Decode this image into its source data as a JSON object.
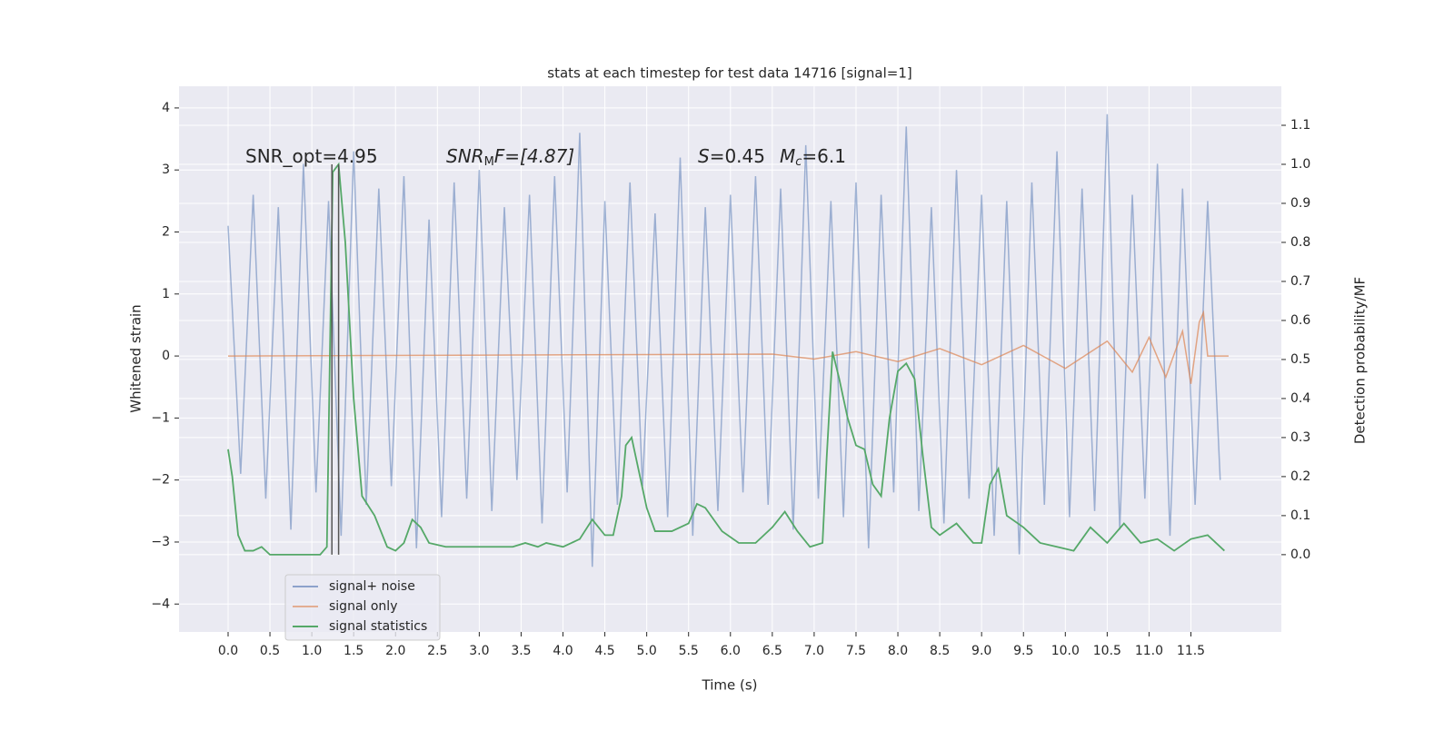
{
  "chart_data": {
    "type": "line",
    "title": "stats at each timestep for test data 14716 [signal=1]",
    "xlabel": "Time (s)",
    "ylabel": "Whitened strain",
    "y2label": "Detection probability/MF",
    "xlim": [
      -0.586,
      12.58
    ],
    "ylim": [
      -4.45,
      4.35
    ],
    "y2lim": [
      -0.198,
      1.2
    ],
    "xticks": [
      {
        "value": 0,
        "label": "0.0"
      },
      0.5,
      {
        "value": 1,
        "label": "1.0"
      },
      1.5,
      {
        "value": 2,
        "label": "2.0"
      },
      2.5,
      {
        "value": 3,
        "label": "3.0"
      },
      3.5,
      {
        "value": 4,
        "label": "4.0"
      },
      4.5,
      {
        "value": 5,
        "label": "5.0"
      },
      5.5,
      {
        "value": 6,
        "label": "6.0"
      },
      6.5,
      {
        "value": 7,
        "label": "7.0"
      },
      7.5,
      {
        "value": 8,
        "label": "8.0"
      },
      8.5,
      {
        "value": 9,
        "label": "9.0"
      },
      9.5,
      {
        "value": 10,
        "label": "10.0"
      },
      10.5,
      {
        "value": 11,
        "label": "11.0"
      },
      11.5
    ],
    "yticks": [
      {
        "value": -4,
        "label": "−4"
      },
      {
        "value": -3,
        "label": "−3"
      },
      {
        "value": -2,
        "label": "−2"
      },
      {
        "value": -1,
        "label": "−1"
      },
      0,
      1,
      2,
      3,
      4
    ],
    "y2ticks": [
      {
        "value": 0,
        "label": "0.0"
      },
      0.1,
      0.2,
      0.3,
      0.4,
      0.5,
      0.6,
      0.7,
      0.8,
      0.9,
      {
        "value": 1,
        "label": "1.0"
      },
      1.1
    ],
    "grid": true,
    "legend_loc": "lower left",
    "annotations": [
      [
        "SNR_opt=4.95"
      ],
      [
        "SNR",
        "M",
        "F=[4.87]"
      ],
      [
        "S",
        "=0.45"
      ],
      [
        "M",
        "c",
        "=6.1"
      ]
    ],
    "vlines": {
      "x": [
        1.24,
        1.32
      ],
      "y2range": [
        0,
        1
      ],
      "color": "#555555"
    },
    "series": [
      {
        "name": "signal+ noise",
        "color": "#4c72b0",
        "x": [
          0,
          0.15,
          0.3,
          0.45,
          0.6,
          0.75,
          0.9,
          1.05,
          1.2,
          1.35,
          1.5,
          1.65,
          1.8,
          1.95,
          2.1,
          2.25,
          2.4,
          2.55,
          2.7,
          2.85,
          3,
          3.15,
          3.3,
          3.45,
          3.6,
          3.75,
          3.9,
          4.05,
          4.2,
          4.35,
          4.5,
          4.65,
          4.8,
          4.95,
          5.1,
          5.25,
          5.4,
          5.55,
          5.7,
          5.85,
          6,
          6.15,
          6.3,
          6.45,
          6.6,
          6.75,
          6.9,
          7.05,
          7.2,
          7.35,
          7.5,
          7.65,
          7.8,
          7.95,
          8.1,
          8.25,
          8.4,
          8.55,
          8.7,
          8.85,
          9,
          9.15,
          9.3,
          9.45,
          9.6,
          9.75,
          9.9,
          10.05,
          10.2,
          10.35,
          10.5,
          10.65,
          10.8,
          10.95,
          11.1,
          11.25,
          11.4,
          11.55,
          11.7,
          11.85
        ],
        "values": [
          2.1,
          -1.9,
          2.6,
          -2.3,
          2.4,
          -2.8,
          3.1,
          -2.2,
          2.5,
          -2.9,
          3.3,
          -2.4,
          2.7,
          -2.1,
          2.9,
          -3.1,
          2.2,
          -2.6,
          2.8,
          -2.3,
          3.0,
          -2.5,
          2.4,
          -2.0,
          2.6,
          -2.7,
          2.9,
          -2.2,
          3.6,
          -3.4,
          2.5,
          -2.4,
          2.8,
          -2.1,
          2.3,
          -2.6,
          3.2,
          -2.9,
          2.4,
          -2.5,
          2.6,
          -2.2,
          2.9,
          -2.4,
          2.7,
          -2.8,
          3.4,
          -2.3,
          2.5,
          -2.6,
          2.8,
          -3.1,
          2.6,
          -2.2,
          3.7,
          -2.5,
          2.4,
          -2.7,
          3.0,
          -2.3,
          2.6,
          -2.9,
          2.5,
          -3.2,
          2.8,
          -2.4,
          3.3,
          -2.6,
          2.7,
          -2.5,
          3.9,
          -2.8,
          2.6,
          -2.3,
          3.1,
          -2.9,
          2.7,
          -2.4,
          2.5,
          -2.0
        ]
      },
      {
        "name": "signal only",
        "color": "#dd8452",
        "x": [
          0,
          6.5,
          7,
          7.5,
          8,
          8.5,
          9,
          9.5,
          10,
          10.5,
          10.8,
          11,
          11.2,
          11.4,
          11.5,
          11.6,
          11.65,
          11.7,
          11.95
        ],
        "values": [
          0,
          0.03,
          -0.05,
          0.07,
          -0.09,
          0.12,
          -0.14,
          0.17,
          -0.2,
          0.24,
          -0.26,
          0.3,
          -0.34,
          0.4,
          -0.45,
          0.55,
          0.7,
          0,
          0
        ]
      },
      {
        "name": "signal statistics",
        "color": "#55a868",
        "axis": "y2",
        "x": [
          0,
          0.05,
          0.12,
          0.2,
          0.3,
          0.4,
          0.5,
          0.7,
          0.9,
          1.1,
          1.18,
          1.25,
          1.32,
          1.4,
          1.5,
          1.6,
          1.75,
          1.9,
          2.0,
          2.1,
          2.2,
          2.3,
          2.4,
          2.6,
          2.8,
          3.0,
          3.2,
          3.4,
          3.55,
          3.7,
          3.8,
          4.0,
          4.2,
          4.35,
          4.5,
          4.6,
          4.7,
          4.75,
          4.82,
          4.9,
          5.0,
          5.1,
          5.3,
          5.5,
          5.6,
          5.7,
          5.9,
          6.1,
          6.3,
          6.5,
          6.65,
          6.8,
          6.95,
          7.1,
          7.15,
          7.22,
          7.3,
          7.4,
          7.5,
          7.6,
          7.7,
          7.8,
          7.9,
          8.0,
          8.1,
          8.2,
          8.3,
          8.4,
          8.5,
          8.7,
          8.9,
          9.0,
          9.1,
          9.2,
          9.3,
          9.5,
          9.7,
          9.9,
          10.1,
          10.3,
          10.5,
          10.7,
          10.9,
          11.1,
          11.3,
          11.5,
          11.7,
          11.9
        ],
        "values": [
          0.27,
          0.2,
          0.05,
          0.01,
          0.01,
          0.02,
          0.0,
          0.0,
          0.0,
          0.0,
          0.02,
          0.98,
          1.0,
          0.8,
          0.4,
          0.15,
          0.1,
          0.02,
          0.01,
          0.03,
          0.09,
          0.07,
          0.03,
          0.02,
          0.02,
          0.02,
          0.02,
          0.02,
          0.03,
          0.02,
          0.03,
          0.02,
          0.04,
          0.09,
          0.05,
          0.05,
          0.15,
          0.28,
          0.3,
          0.22,
          0.12,
          0.06,
          0.06,
          0.08,
          0.13,
          0.12,
          0.06,
          0.03,
          0.03,
          0.07,
          0.11,
          0.06,
          0.02,
          0.03,
          0.25,
          0.52,
          0.45,
          0.35,
          0.28,
          0.27,
          0.18,
          0.15,
          0.35,
          0.47,
          0.49,
          0.45,
          0.25,
          0.07,
          0.05,
          0.08,
          0.03,
          0.03,
          0.18,
          0.22,
          0.1,
          0.07,
          0.03,
          0.02,
          0.01,
          0.07,
          0.03,
          0.08,
          0.03,
          0.04,
          0.01,
          0.04,
          0.05,
          0.01
        ]
      }
    ]
  }
}
